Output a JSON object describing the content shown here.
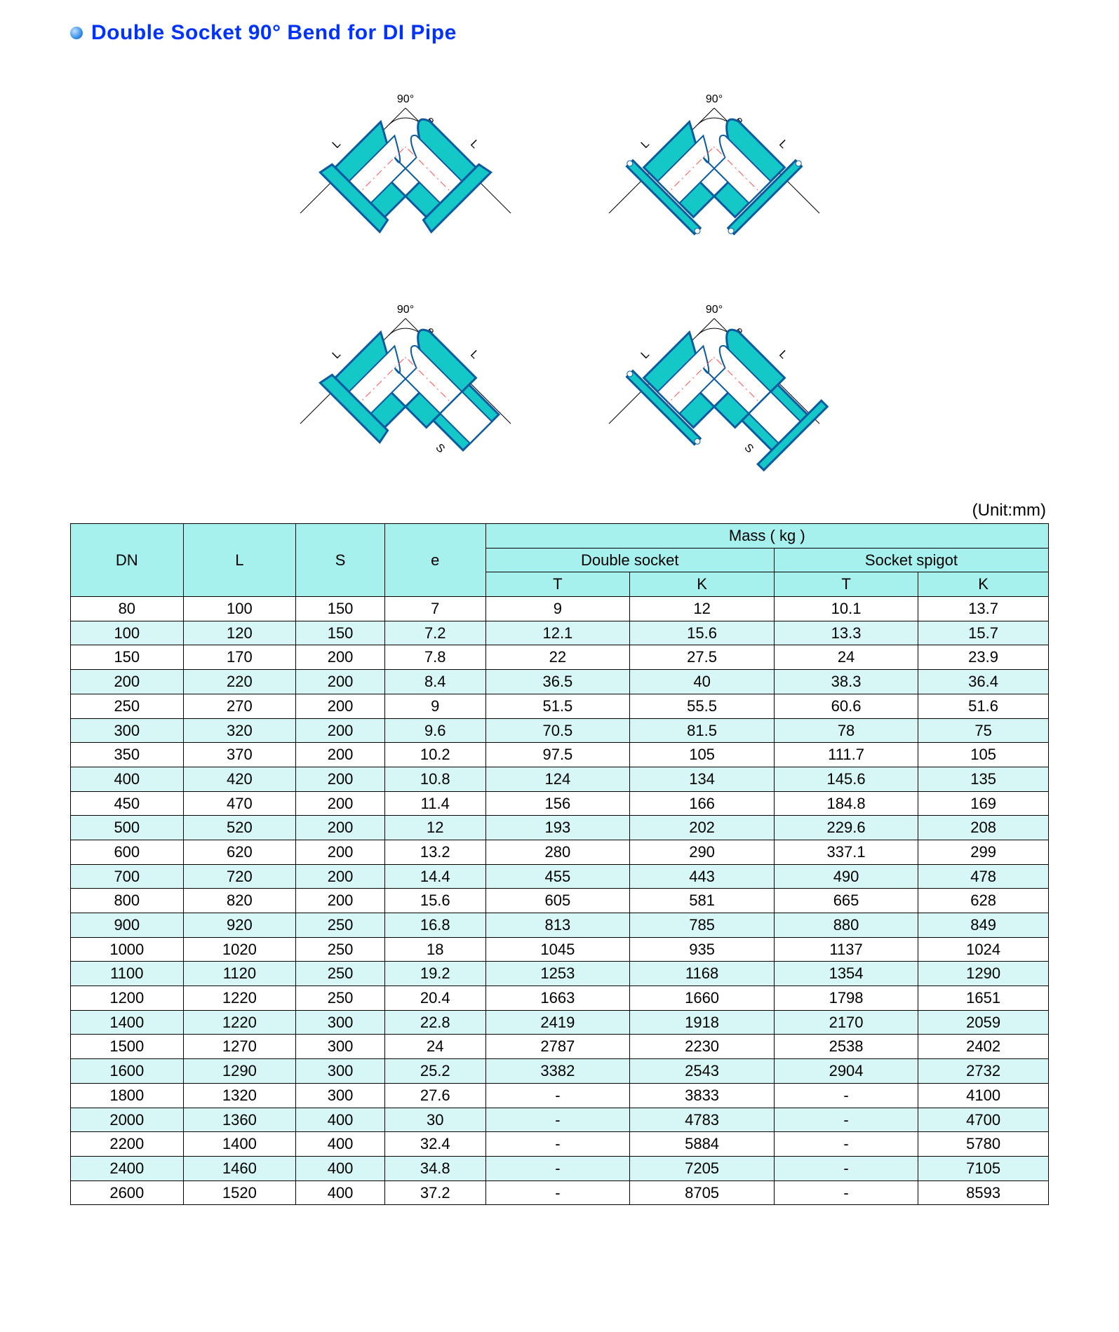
{
  "title": "Double Socket 90°   Bend for DI Pipe",
  "unit_label": "(Unit:mm)",
  "colors": {
    "title": "#0033ff",
    "header_bg": "#a6f0ee",
    "alt_row_bg": "#d6f7f6",
    "border": "#000000",
    "diagram_fill": "#14c8c8",
    "diagram_stroke": "#0a5aa0",
    "diagram_centerline": "#ff4d4d"
  },
  "diagrams": {
    "angle_label": "90°",
    "dim_L": "L",
    "dim_e": "e",
    "dim_S": "S",
    "variants": [
      "double-socket",
      "double-flange",
      "socket-spigot",
      "flange-spigot"
    ]
  },
  "table": {
    "header": {
      "dn": "DN",
      "l": "L",
      "s": "S",
      "e": "e",
      "mass": "Mass ( kg )",
      "double_socket": "Double socket",
      "socket_spigot": "Socket spigot",
      "t": "T",
      "k": "K"
    },
    "columns_order": [
      "DN",
      "L",
      "S",
      "e",
      "DS_T",
      "DS_K",
      "SS_T",
      "SS_K"
    ],
    "rows": [
      {
        "dn": "80",
        "l": "100",
        "s": "150",
        "e": "7",
        "ds_t": "9",
        "ds_k": "12",
        "ss_t": "10.1",
        "ss_k": "13.7"
      },
      {
        "dn": "100",
        "l": "120",
        "s": "150",
        "e": "7.2",
        "ds_t": "12.1",
        "ds_k": "15.6",
        "ss_t": "13.3",
        "ss_k": "15.7"
      },
      {
        "dn": "150",
        "l": "170",
        "s": "200",
        "e": "7.8",
        "ds_t": "22",
        "ds_k": "27.5",
        "ss_t": "24",
        "ss_k": "23.9"
      },
      {
        "dn": "200",
        "l": "220",
        "s": "200",
        "e": "8.4",
        "ds_t": "36.5",
        "ds_k": "40",
        "ss_t": "38.3",
        "ss_k": "36.4"
      },
      {
        "dn": "250",
        "l": "270",
        "s": "200",
        "e": "9",
        "ds_t": "51.5",
        "ds_k": "55.5",
        "ss_t": "60.6",
        "ss_k": "51.6"
      },
      {
        "dn": "300",
        "l": "320",
        "s": "200",
        "e": "9.6",
        "ds_t": "70.5",
        "ds_k": "81.5",
        "ss_t": "78",
        "ss_k": "75"
      },
      {
        "dn": "350",
        "l": "370",
        "s": "200",
        "e": "10.2",
        "ds_t": "97.5",
        "ds_k": "105",
        "ss_t": "111.7",
        "ss_k": "105"
      },
      {
        "dn": "400",
        "l": "420",
        "s": "200",
        "e": "10.8",
        "ds_t": "124",
        "ds_k": "134",
        "ss_t": "145.6",
        "ss_k": "135"
      },
      {
        "dn": "450",
        "l": "470",
        "s": "200",
        "e": "11.4",
        "ds_t": "156",
        "ds_k": "166",
        "ss_t": "184.8",
        "ss_k": "169"
      },
      {
        "dn": "500",
        "l": "520",
        "s": "200",
        "e": "12",
        "ds_t": "193",
        "ds_k": "202",
        "ss_t": "229.6",
        "ss_k": "208"
      },
      {
        "dn": "600",
        "l": "620",
        "s": "200",
        "e": "13.2",
        "ds_t": "280",
        "ds_k": "290",
        "ss_t": "337.1",
        "ss_k": "299"
      },
      {
        "dn": "700",
        "l": "720",
        "s": "200",
        "e": "14.4",
        "ds_t": "455",
        "ds_k": "443",
        "ss_t": "490",
        "ss_k": "478"
      },
      {
        "dn": "800",
        "l": "820",
        "s": "200",
        "e": "15.6",
        "ds_t": "605",
        "ds_k": "581",
        "ss_t": "665",
        "ss_k": "628"
      },
      {
        "dn": "900",
        "l": "920",
        "s": "250",
        "e": "16.8",
        "ds_t": "813",
        "ds_k": "785",
        "ss_t": "880",
        "ss_k": "849"
      },
      {
        "dn": "1000",
        "l": "1020",
        "s": "250",
        "e": "18",
        "ds_t": "1045",
        "ds_k": "935",
        "ss_t": "1137",
        "ss_k": "1024"
      },
      {
        "dn": "1100",
        "l": "1120",
        "s": "250",
        "e": "19.2",
        "ds_t": "1253",
        "ds_k": "1168",
        "ss_t": "1354",
        "ss_k": "1290"
      },
      {
        "dn": "1200",
        "l": "1220",
        "s": "250",
        "e": "20.4",
        "ds_t": "1663",
        "ds_k": "1660",
        "ss_t": "1798",
        "ss_k": "1651"
      },
      {
        "dn": "1400",
        "l": "1220",
        "s": "300",
        "e": "22.8",
        "ds_t": "2419",
        "ds_k": "1918",
        "ss_t": "2170",
        "ss_k": "2059"
      },
      {
        "dn": "1500",
        "l": "1270",
        "s": "300",
        "e": "24",
        "ds_t": "2787",
        "ds_k": "2230",
        "ss_t": "2538",
        "ss_k": "2402"
      },
      {
        "dn": "1600",
        "l": "1290",
        "s": "300",
        "e": "25.2",
        "ds_t": "3382",
        "ds_k": "2543",
        "ss_t": "2904",
        "ss_k": "2732"
      },
      {
        "dn": "1800",
        "l": "1320",
        "s": "300",
        "e": "27.6",
        "ds_t": "-",
        "ds_k": "3833",
        "ss_t": "-",
        "ss_k": "4100"
      },
      {
        "dn": "2000",
        "l": "1360",
        "s": "400",
        "e": "30",
        "ds_t": "-",
        "ds_k": "4783",
        "ss_t": "-",
        "ss_k": "4700"
      },
      {
        "dn": "2200",
        "l": "1400",
        "s": "400",
        "e": "32.4",
        "ds_t": "-",
        "ds_k": "5884",
        "ss_t": "-",
        "ss_k": "5780"
      },
      {
        "dn": "2400",
        "l": "1460",
        "s": "400",
        "e": "34.8",
        "ds_t": "-",
        "ds_k": "7205",
        "ss_t": "-",
        "ss_k": "7105"
      },
      {
        "dn": "2600",
        "l": "1520",
        "s": "400",
        "e": "37.2",
        "ds_t": "-",
        "ds_k": "8705",
        "ss_t": "-",
        "ss_k": "8593"
      }
    ],
    "alt_row_pattern_start": 0,
    "alt_row_pattern_step": 2
  }
}
